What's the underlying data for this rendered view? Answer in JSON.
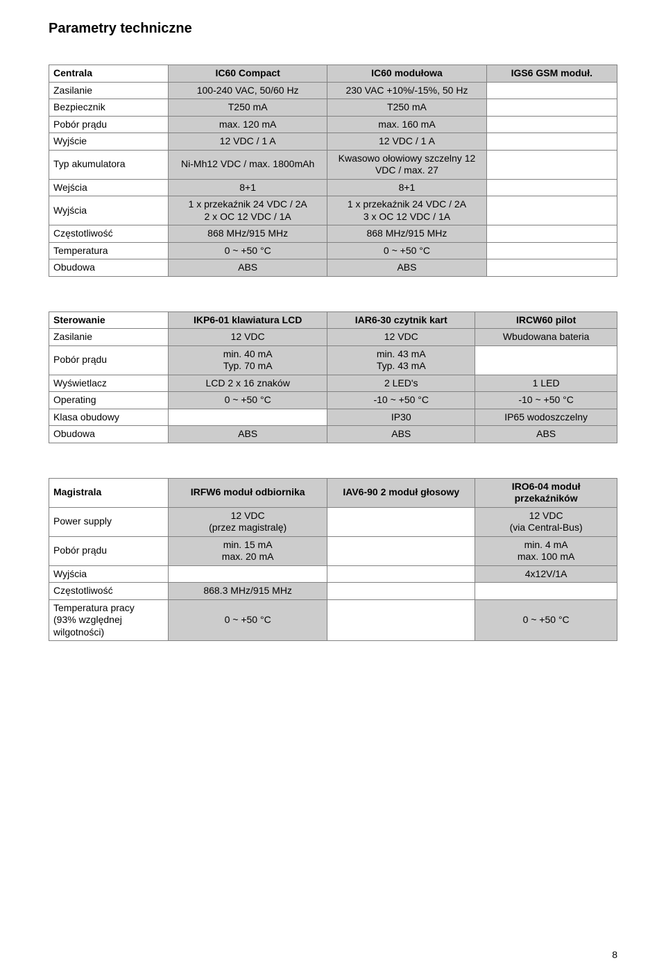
{
  "page": {
    "title": "Parametry techniczne",
    "number": "8"
  },
  "colors": {
    "page_bg": "#ffffff",
    "cell_bg": "#cccccc",
    "border": "#808080",
    "text": "#000000"
  },
  "table1": {
    "header": {
      "c0": "Centrala",
      "c1": "IC60 Compact",
      "c2": "IC60 modułowa",
      "c3": "IGS6 GSM moduł."
    },
    "rows": [
      {
        "label": "Zasilanie",
        "c1": "100-240 VAC, 50/60 Hz",
        "c2": "230 VAC +10%/-15%, 50 Hz"
      },
      {
        "label": "Bezpiecznik",
        "c1": "T250 mA",
        "c2": "T250 mA"
      },
      {
        "label": "Pobór prądu",
        "c1": "max. 120 mA",
        "c2": "max. 160 mA"
      },
      {
        "label": "Wyjście",
        "c1": "12 VDC / 1 A",
        "c2": "12 VDC / 1 A"
      },
      {
        "label": "Typ akumulatora",
        "c1": "Ni-Mh12 VDC / max. 1800mAh",
        "c2": "Kwasowo ołowiowy szczelny 12 VDC / max. 27"
      },
      {
        "label": "Wejścia",
        "c1": "8+1",
        "c2": "8+1"
      },
      {
        "label": "Wyjścia",
        "c1": "1 x przekaźnik 24 VDC / 2A\n2 x OC 12 VDC / 1A",
        "c2": "1 x przekaźnik 24 VDC / 2A\n3 x OC 12 VDC / 1A"
      },
      {
        "label": "Częstotliwość",
        "c1": "868 MHz/915 MHz",
        "c2": "868 MHz/915 MHz"
      },
      {
        "label": "Temperatura",
        "c1": "0 ~ +50 °C",
        "c2": "0 ~ +50 °C"
      },
      {
        "label": "Obudowa",
        "c1": "ABS",
        "c2": "ABS"
      }
    ]
  },
  "table2": {
    "header": {
      "c0": "Sterowanie",
      "c1": "IKP6-01 klawiatura LCD",
      "c2": "IAR6-30 czytnik kart",
      "c3": "IRCW60 pilot"
    },
    "rows": [
      {
        "label": "Zasilanie",
        "c1": "12 VDC",
        "c2": "12 VDC",
        "c3": "Wbudowana bateria"
      },
      {
        "label": "Pobór prądu",
        "c1": "min. 40 mA\nTyp. 70 mA",
        "c2": "min. 43 mA\nTyp. 43 mA",
        "c3": ""
      },
      {
        "label": "Wyświetlacz",
        "c1": "LCD 2 x 16 znaków",
        "c2": "2 LED's",
        "c3": "1 LED"
      },
      {
        "label": "Operating",
        "c1": "0 ~ +50 °C",
        "c2": "-10 ~ +50 °C",
        "c3": "-10 ~ +50 °C"
      },
      {
        "label": "Klasa obudowy",
        "c1": "",
        "c2": "IP30",
        "c3": "IP65 wodoszczelny"
      },
      {
        "label": "Obudowa",
        "c1": "ABS",
        "c2": "ABS",
        "c3": "ABS"
      }
    ]
  },
  "table3": {
    "header": {
      "c0": "Magistrala",
      "c1": "IRFW6 moduł odbiornika",
      "c2": "IAV6-90 2 moduł głosowy",
      "c3": "IRO6-04 moduł przekaźników"
    },
    "rows": [
      {
        "label": "Power supply",
        "c1": "12 VDC\n(przez magistralę)",
        "c2": "",
        "c3": "12 VDC\n(via Central-Bus)"
      },
      {
        "label": "Pobór prądu",
        "c1": "min. 15 mA\nmax. 20 mA",
        "c2": "",
        "c3": "min. 4 mA\nmax. 100 mA"
      },
      {
        "label": "Wyjścia",
        "c1": "",
        "c2": "",
        "c3": "4x12V/1A"
      },
      {
        "label": "Częstotliwość",
        "c1": "868.3 MHz/915 MHz",
        "c2": "",
        "c3": ""
      },
      {
        "label": "Temperatura pracy\n(93% względnej wilgotności)",
        "c1": "0 ~ +50 °C",
        "c2": "",
        "c3": "0 ~ +50 °C"
      }
    ]
  }
}
